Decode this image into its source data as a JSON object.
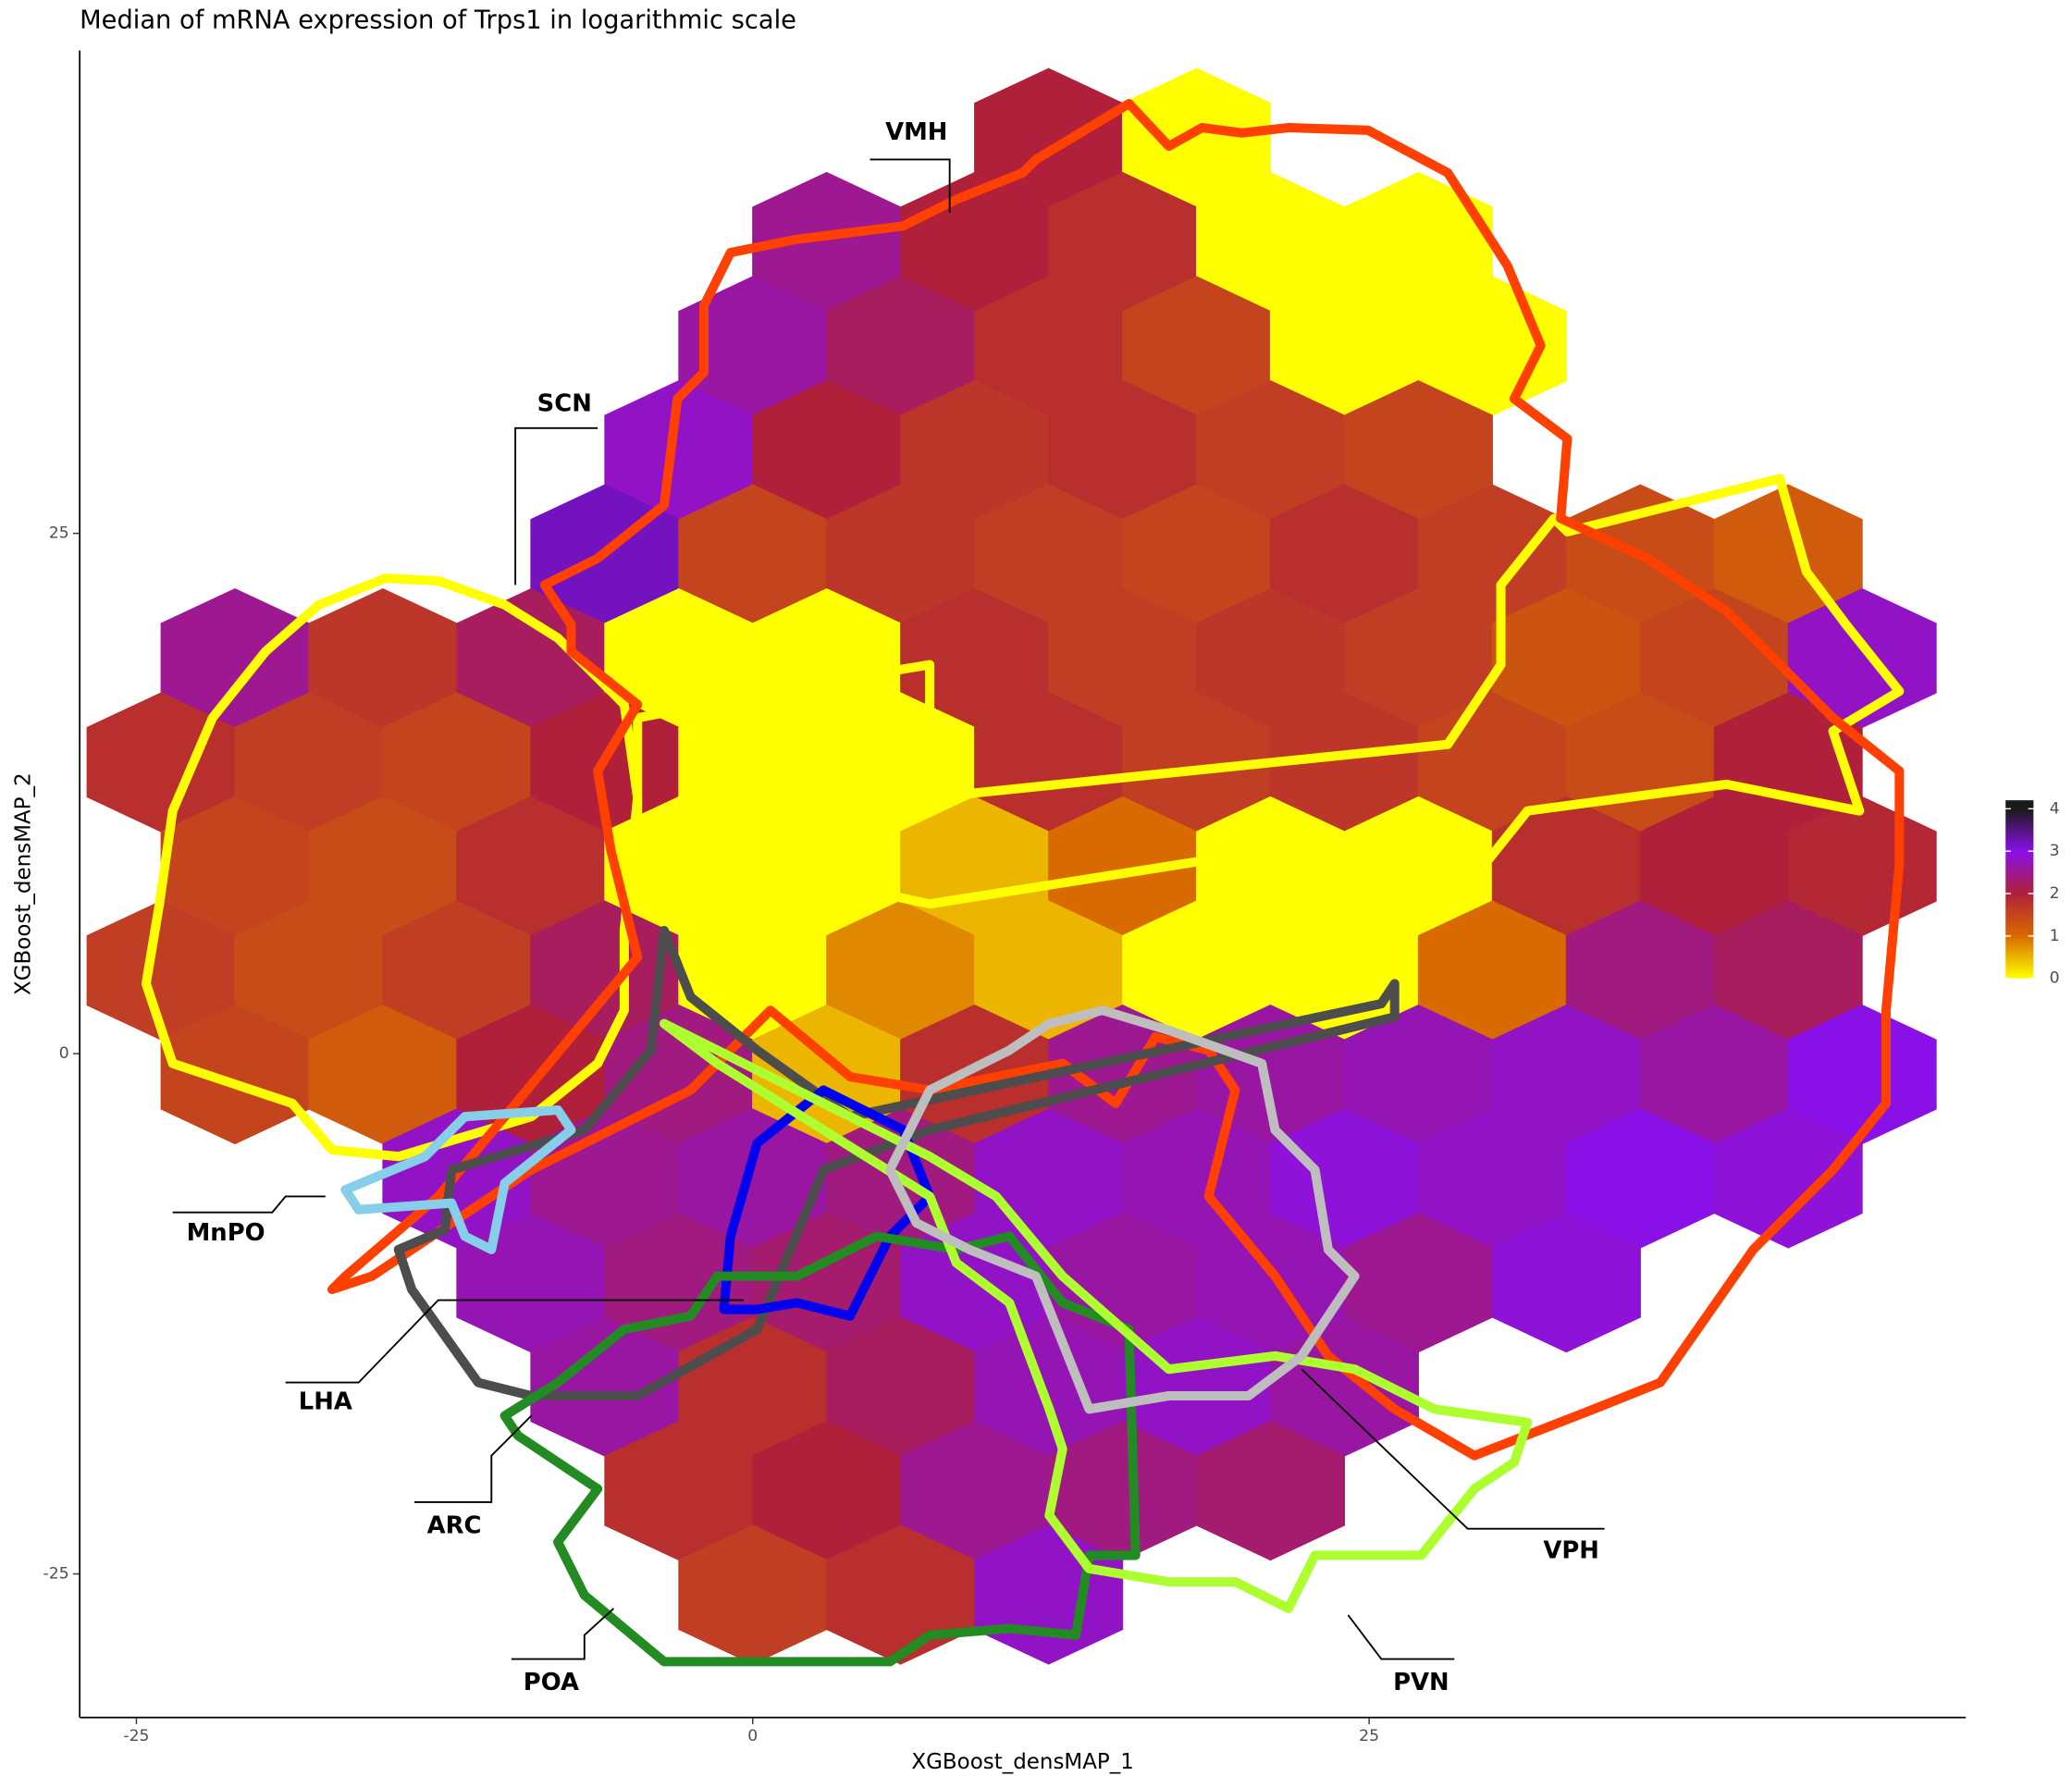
{
  "chart_data": {
    "type": "hexbin",
    "title": "Median of mRNA expression of Trps1 in logarithmic scale",
    "x_label": "XGBoost_densMAP_1",
    "y_label": "XGBoost_densMAP_2",
    "xlim": [
      -27.3,
      49.2
    ],
    "ylim": [
      -31.9,
      48.2
    ],
    "xticks": [
      -25,
      0,
      25
    ],
    "yticks": [
      -25,
      0,
      25
    ],
    "x": [
      12,
      18,
      3,
      9,
      15,
      21,
      27,
      0,
      6,
      12,
      18,
      24,
      30,
      -3,
      3,
      9,
      15,
      21,
      27,
      -6,
      0,
      6,
      12,
      18,
      24,
      30,
      36,
      42,
      -21,
      -15,
      -9,
      -3,
      3,
      9,
      15,
      21,
      27,
      33,
      39,
      45,
      -24,
      -18,
      -12,
      -6,
      0,
      6,
      12,
      18,
      24,
      30,
      36,
      42,
      -21,
      -15,
      -9,
      -3,
      3,
      9,
      15,
      21,
      27,
      33,
      39,
      45,
      -24,
      -18,
      -12,
      -6,
      0,
      6,
      12,
      18,
      24,
      30,
      36,
      42,
      -21,
      -15,
      -9,
      -3,
      3,
      9,
      15,
      21,
      27,
      33,
      39,
      45,
      -12,
      -6,
      0,
      6,
      12,
      18,
      24,
      30,
      36,
      42,
      -9,
      -3,
      3,
      9,
      15,
      21,
      27,
      33,
      -6,
      0,
      6,
      12,
      18,
      24,
      -3,
      3,
      9,
      15,
      21,
      0,
      6,
      12
    ],
    "y": [
      44,
      44,
      39,
      39,
      39,
      39,
      39,
      34,
      34,
      34,
      34,
      34,
      34,
      29,
      29,
      29,
      29,
      29,
      29,
      24,
      24,
      24,
      24,
      24,
      24,
      24,
      24,
      24,
      19,
      19,
      19,
      19,
      19,
      19,
      19,
      19,
      19,
      19,
      19,
      19,
      14,
      14,
      14,
      14,
      14,
      14,
      14,
      14,
      14,
      14,
      14,
      14,
      9,
      9,
      9,
      9,
      9,
      9,
      9,
      9,
      9,
      9,
      9,
      9,
      4,
      4,
      4,
      4,
      4,
      4,
      4,
      4,
      4,
      4,
      4,
      4,
      -1,
      -1,
      -1,
      -1,
      -1,
      -1,
      -1,
      -1,
      -1,
      -1,
      -1,
      -1,
      -6,
      -6,
      -6,
      -6,
      -6,
      -6,
      -6,
      -6,
      -6,
      -6,
      -11,
      -11,
      -11,
      -11,
      -11,
      -11,
      -11,
      -11,
      -16,
      -16,
      -16,
      -16,
      -16,
      -16,
      -21,
      -21,
      -21,
      -21,
      -21,
      -26,
      -26,
      -26
    ],
    "values": [
      2,
      0,
      2.5,
      2,
      1.8,
      0,
      0,
      2.6,
      2.2,
      1.8,
      1.5,
      0,
      0,
      2.8,
      2,
      1.7,
      1.8,
      1.6,
      1.5,
      3.2,
      1.5,
      1.7,
      1.6,
      1.5,
      1.8,
      1.6,
      1.4,
      1.2,
      2.5,
      1.7,
      2.2,
      0,
      0,
      1.8,
      1.6,
      1.7,
      1.6,
      1.3,
      1.5,
      2.8,
      1.8,
      1.6,
      1.5,
      2,
      0,
      0,
      1.8,
      1.6,
      1.7,
      1.5,
      1.4,
      2,
      1.5,
      1.4,
      1.8,
      0,
      0,
      0.5,
      1,
      0,
      0,
      1.8,
      2,
      1.9,
      1.6,
      1.4,
      1.6,
      2.2,
      0,
      0.8,
      0.5,
      0,
      0,
      1,
      2.4,
      2.2,
      1.5,
      1.2,
      2,
      2.4,
      0.5,
      1.8,
      2.5,
      2.6,
      2.7,
      2.8,
      2.6,
      3,
      2.8,
      2.5,
      2.6,
      2.4,
      2.8,
      2.7,
      2.9,
      2.8,
      3,
      2.9,
      2.7,
      2.4,
      2.3,
      2.8,
      2.6,
      2.7,
      2.5,
      2.9,
      2.6,
      1.8,
      2.2,
      2.7,
      2.8,
      2.6,
      1.8,
      2,
      2.5,
      2.4,
      2.3,
      1.6,
      1.8,
      2.8
    ],
    "colorbar": {
      "lim": [
        0,
        4.2
      ],
      "ticks": [
        0,
        1,
        2,
        3,
        4
      ]
    },
    "colorscale": [
      "#ffff00",
      "#d86a00",
      "#b0203a",
      "#8a10e8",
      "#1a1a1a"
    ],
    "annotations": [
      "VMH",
      "SCN",
      "MnPO",
      "LHA",
      "ARC",
      "POA",
      "VPH",
      "PVN"
    ]
  }
}
